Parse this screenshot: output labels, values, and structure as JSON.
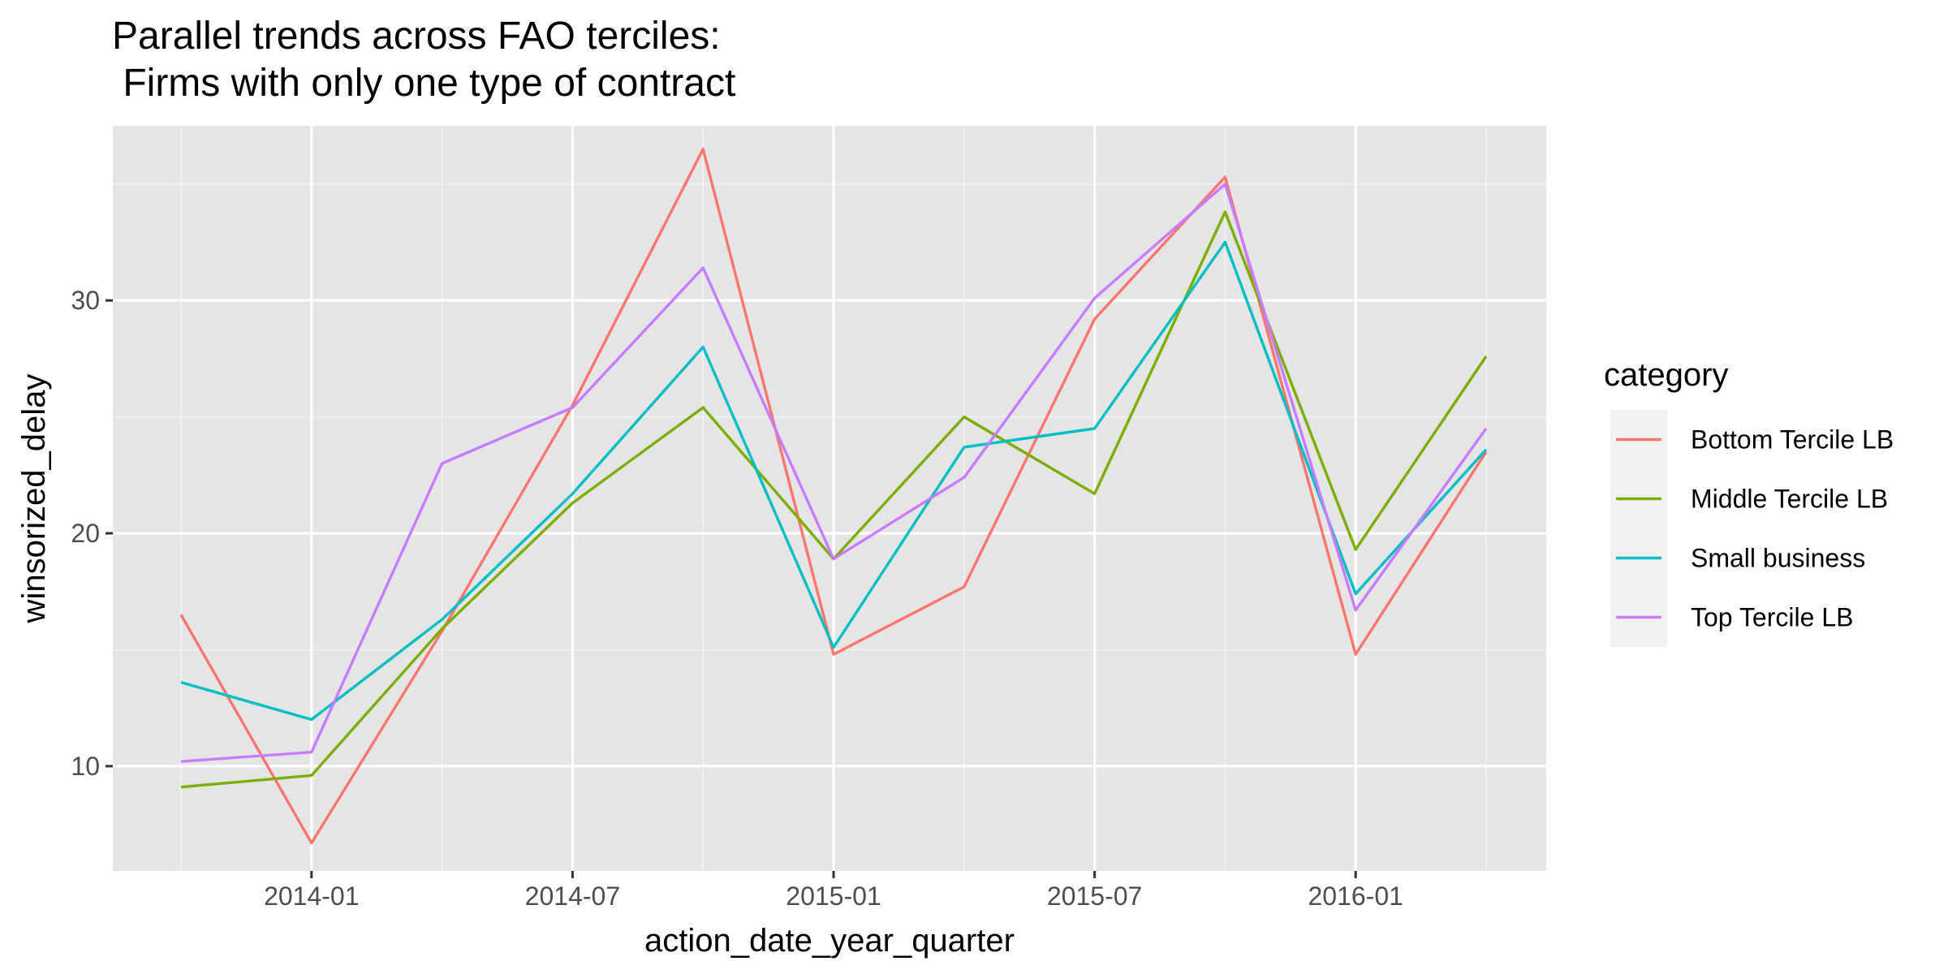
{
  "chart_data": {
    "type": "line",
    "title_lines": [
      "Parallel trends across FAO terciles:",
      " Firms with only one type of contract"
    ],
    "xlabel": "action_date_year_quarter",
    "ylabel": "winsorized_delay",
    "x": [
      "2013-10",
      "2014-01",
      "2014-04",
      "2014-07",
      "2014-10",
      "2015-01",
      "2015-04",
      "2015-07",
      "2015-10",
      "2016-01",
      "2016-04"
    ],
    "x_ticks": [
      "2014-01",
      "2014-07",
      "2015-01",
      "2015-07",
      "2016-01"
    ],
    "y_ticks": [
      10,
      20,
      30
    ],
    "ylim": [
      5.5,
      37.5
    ],
    "legend_title": "category",
    "legend_position": "right",
    "grid": true,
    "colors": {
      "panel_background": "#E5E5E5",
      "grid_major": "#FFFFFF",
      "grid_minor": "#F2F2F2",
      "legend_key_background": "#F2F2F2"
    },
    "series": [
      {
        "name": "Bottom Tercile LB",
        "color": "#F8766D",
        "values": [
          16.5,
          6.7,
          15.8,
          25.5,
          36.5,
          14.8,
          17.7,
          29.2,
          35.3,
          14.8,
          23.5
        ]
      },
      {
        "name": "Middle Tercile LB",
        "color": "#7CAE00",
        "values": [
          9.1,
          9.6,
          15.9,
          21.3,
          25.4,
          18.9,
          25.0,
          21.7,
          33.8,
          19.3,
          27.6
        ]
      },
      {
        "name": "Small business",
        "color": "#00BFC4",
        "values": [
          13.6,
          12.0,
          16.3,
          21.7,
          28.0,
          15.1,
          23.7,
          24.5,
          32.5,
          17.4,
          23.6
        ]
      },
      {
        "name": "Top Tercile LB",
        "color": "#C77CFF",
        "values": [
          10.2,
          10.6,
          23.0,
          25.4,
          31.4,
          18.9,
          22.4,
          30.1,
          35.0,
          16.7,
          24.5
        ]
      }
    ]
  }
}
